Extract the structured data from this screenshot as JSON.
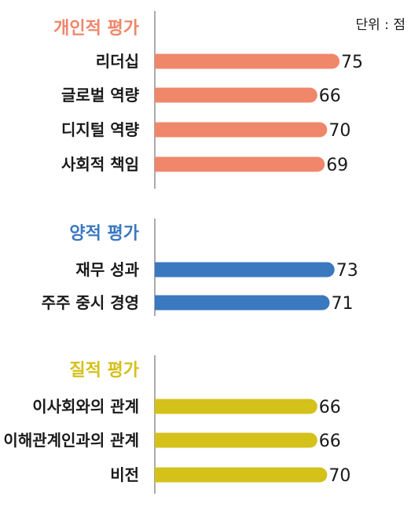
{
  "chart_data": {
    "type": "bar",
    "orientation": "horizontal",
    "unit_label": "단위 : 점",
    "xlim": [
      0,
      80
    ],
    "groups": [
      {
        "title": "개인적 평가",
        "color": "#F0866A",
        "categories": [
          "리더십",
          "글로벌 역량",
          "디지털 역량",
          "사회적 책임"
        ],
        "values": [
          75,
          66,
          70,
          69
        ]
      },
      {
        "title": "양적 평가",
        "color": "#3A78C0",
        "categories": [
          "재무 성과",
          "주주 중시 경영"
        ],
        "values": [
          73,
          71
        ]
      },
      {
        "title": "질적 평가",
        "color": "#D4C11A",
        "categories": [
          "이사회와의 관계",
          "이해관계인과의 관계",
          "비전"
        ],
        "values": [
          66,
          66,
          70
        ]
      }
    ]
  }
}
